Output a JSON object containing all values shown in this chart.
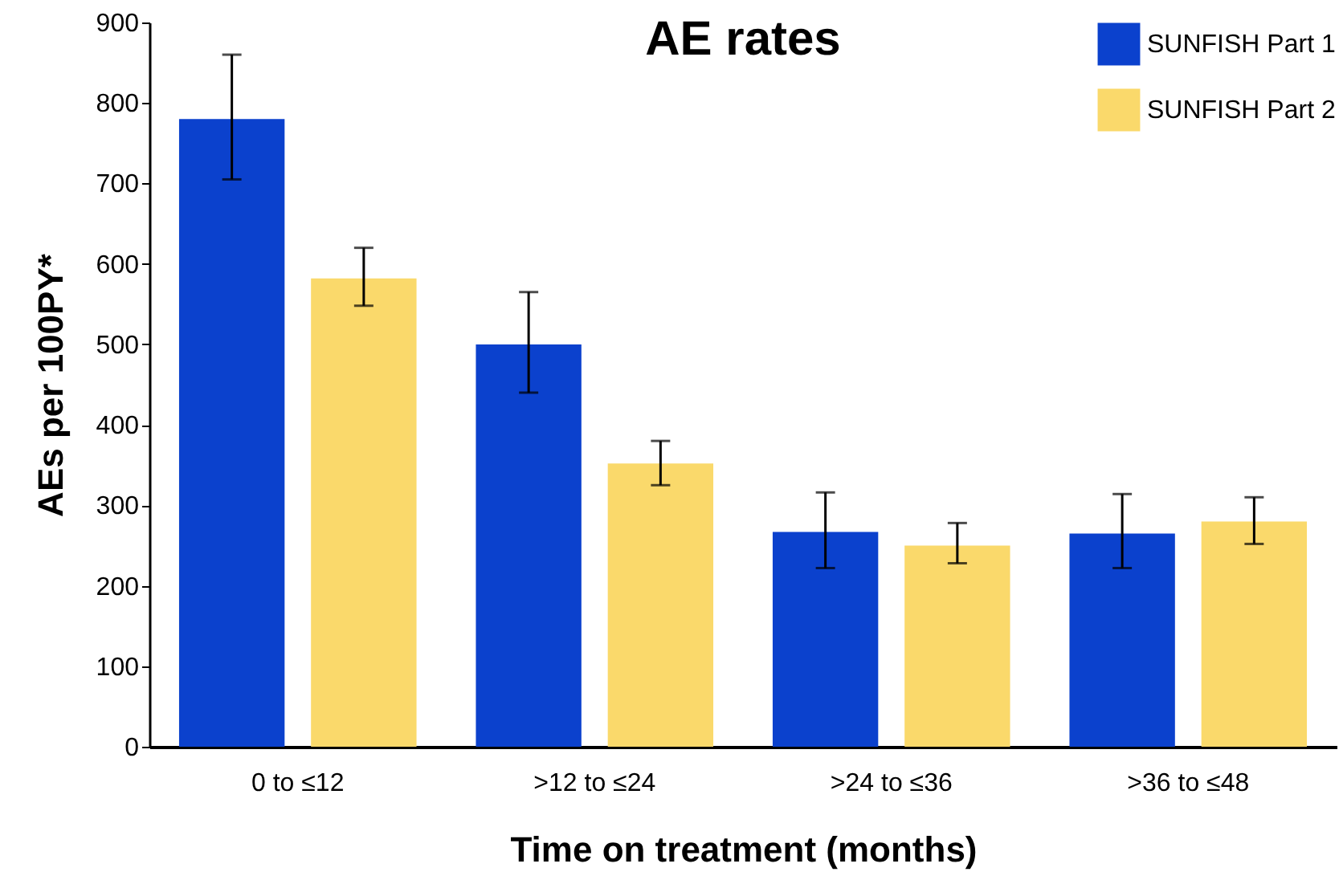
{
  "chart_data": {
    "type": "bar",
    "title": "AE rates",
    "xlabel": "Time on treatment (months)",
    "ylabel": "AEs per 100PY*",
    "categories": [
      "0 to ≤12",
      ">12 to ≤24",
      ">24 to ≤36",
      ">36 to ≤48"
    ],
    "series": [
      {
        "name": "SUNFISH Part 1",
        "color": "#0b41cd",
        "values": [
          780,
          500,
          267,
          265
        ],
        "errors": [
          [
            705,
            860
          ],
          [
            440,
            565
          ],
          [
            222,
            316
          ],
          [
            222,
            314
          ]
        ]
      },
      {
        "name": "SUNFISH Part 2",
        "color": "#fad96b",
        "values": [
          582,
          352,
          250,
          280
        ],
        "errors": [
          [
            548,
            620
          ],
          [
            325,
            380
          ],
          [
            228,
            278
          ],
          [
            252,
            310
          ]
        ]
      }
    ],
    "ylim": [
      0,
      900
    ],
    "yticks": [
      0,
      100,
      200,
      300,
      400,
      500,
      600,
      700,
      800,
      900
    ],
    "grid": false,
    "legend": "top right"
  }
}
